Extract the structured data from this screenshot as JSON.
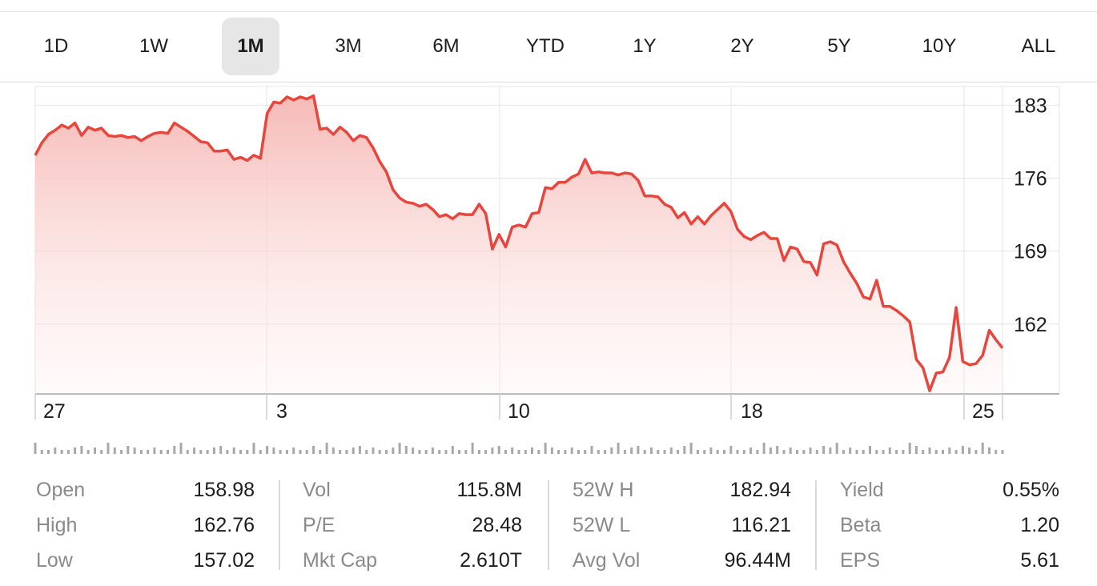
{
  "ranges": [
    {
      "label": "1D"
    },
    {
      "label": "1W"
    },
    {
      "label": "1M",
      "active": true
    },
    {
      "label": "3M"
    },
    {
      "label": "6M"
    },
    {
      "label": "YTD"
    },
    {
      "label": "1Y"
    },
    {
      "label": "2Y"
    },
    {
      "label": "5Y"
    },
    {
      "label": "10Y"
    },
    {
      "label": "ALL"
    }
  ],
  "chart_data": {
    "type": "area",
    "x_tick_labels": [
      "27",
      "3",
      "10",
      "18",
      "25"
    ],
    "y_tick_labels": [
      "183",
      "176",
      "169",
      "162"
    ],
    "y_ticks": [
      183,
      176,
      169,
      162
    ],
    "ylim": [
      155.3,
      184.8
    ],
    "line_color": "#e8453c",
    "fill_color": "#f7c3c0",
    "values": [
      178.2,
      179.4,
      180.2,
      180.6,
      181.1,
      180.8,
      181.3,
      180.1,
      180.9,
      180.6,
      180.8,
      180.1,
      180.0,
      180.1,
      179.9,
      180.0,
      179.6,
      180.0,
      180.3,
      180.4,
      180.3,
      181.3,
      180.9,
      180.5,
      180.0,
      179.5,
      179.4,
      178.6,
      178.6,
      178.7,
      177.8,
      178.0,
      177.7,
      178.2,
      177.9,
      182.2,
      183.3,
      183.2,
      183.8,
      183.5,
      183.8,
      183.6,
      183.9,
      180.7,
      180.8,
      180.2,
      180.9,
      180.4,
      179.6,
      180.1,
      179.9,
      178.9,
      177.6,
      176.6,
      174.9,
      174.1,
      173.7,
      173.6,
      173.3,
      173.5,
      173.0,
      172.3,
      172.5,
      172.1,
      172.6,
      172.5,
      172.5,
      173.5,
      172.6,
      169.2,
      170.6,
      169.4,
      171.3,
      171.5,
      171.3,
      172.6,
      172.7,
      175.1,
      175.0,
      175.6,
      175.6,
      176.1,
      176.4,
      177.8,
      176.5,
      176.6,
      176.5,
      176.5,
      176.3,
      176.5,
      176.4,
      175.8,
      174.3,
      174.3,
      174.2,
      173.5,
      173.2,
      172.2,
      172.7,
      171.6,
      172.3,
      171.6,
      172.4,
      173.0,
      173.6,
      172.8,
      171.1,
      170.4,
      170.1,
      170.5,
      170.8,
      170.2,
      170.2,
      168.1,
      169.4,
      169.2,
      168.0,
      167.9,
      166.7,
      169.7,
      169.9,
      169.6,
      168.0,
      166.9,
      165.9,
      164.6,
      164.4,
      166.2,
      163.7,
      163.7,
      163.3,
      162.8,
      162.2,
      158.6,
      157.8,
      155.6,
      157.3,
      157.4,
      158.8,
      163.6,
      158.4,
      158.1,
      158.2,
      159.0,
      161.4,
      160.5,
      159.7
    ],
    "volume": [
      {
        "v": 1.0,
        "major": false
      }
    ]
  },
  "stats": [
    [
      {
        "label": "Open",
        "value": "158.98"
      },
      {
        "label": "High",
        "value": "162.76"
      },
      {
        "label": "Low",
        "value": "157.02"
      }
    ],
    [
      {
        "label": "Vol",
        "value": "115.8M"
      },
      {
        "label": "P/E",
        "value": "28.48"
      },
      {
        "label": "Mkt Cap",
        "value": "2.610T"
      }
    ],
    [
      {
        "label": "52W H",
        "value": "182.94"
      },
      {
        "label": "52W L",
        "value": "116.21"
      },
      {
        "label": "Avg Vol",
        "value": "96.44M"
      }
    ],
    [
      {
        "label": "Yield",
        "value": "0.55%"
      },
      {
        "label": "Beta",
        "value": "1.20"
      },
      {
        "label": "EPS",
        "value": "5.61"
      }
    ]
  ]
}
